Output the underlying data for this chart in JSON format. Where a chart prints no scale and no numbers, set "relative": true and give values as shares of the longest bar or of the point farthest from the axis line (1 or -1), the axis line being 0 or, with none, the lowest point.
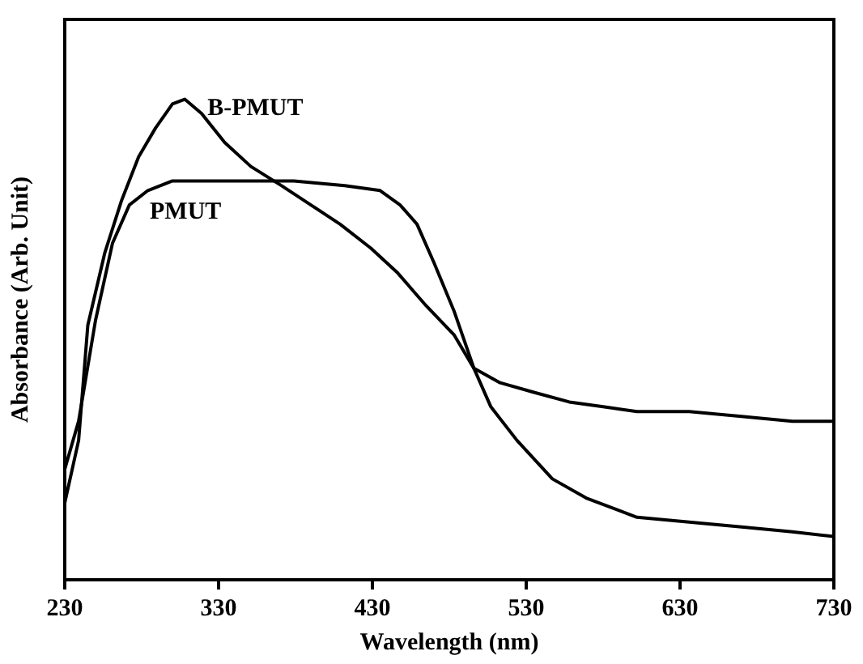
{
  "chart_data": {
    "type": "line",
    "xlabel": "Wavelength (nm)",
    "ylabel": "Absorbance (Arb. Unit)",
    "relative": true,
    "xlim": [
      230,
      730
    ],
    "xticks": [
      230,
      330,
      430,
      530,
      630,
      730
    ],
    "grid": false,
    "legend": false,
    "marker": "none",
    "line_style": "solid",
    "series": [
      {
        "name": "B-PMUT",
        "color": "#000000",
        "x": [
          230,
          239,
          245,
          256,
          267,
          278,
          289,
          300,
          308,
          319,
          334,
          351,
          371,
          390,
          409,
          429,
          446,
          465,
          483,
          496,
          513,
          535,
          558,
          580,
          602,
          636,
          670,
          703,
          730
        ],
        "values": [
          0.16,
          0.29,
          0.53,
          0.68,
          0.79,
          0.88,
          0.94,
          0.99,
          1,
          0.97,
          0.91,
          0.86,
          0.82,
          0.78,
          0.74,
          0.69,
          0.64,
          0.57,
          0.51,
          0.44,
          0.41,
          0.39,
          0.37,
          0.36,
          0.35,
          0.35,
          0.34,
          0.33,
          0.33
        ]
      },
      {
        "name": "PMUT",
        "color": "#000000",
        "x": [
          230,
          239,
          250,
          261,
          272,
          284,
          300,
          334,
          379,
          412,
          435,
          448,
          459,
          470,
          483,
          496,
          507,
          524,
          547,
          569,
          602,
          636,
          670,
          703,
          730
        ],
        "values": [
          0.23,
          0.33,
          0.54,
          0.7,
          0.78,
          0.81,
          0.83,
          0.83,
          0.83,
          0.82,
          0.81,
          0.78,
          0.74,
          0.66,
          0.56,
          0.44,
          0.36,
          0.29,
          0.21,
          0.17,
          0.13,
          0.12,
          0.11,
          0.1,
          0.09
        ]
      }
    ]
  }
}
